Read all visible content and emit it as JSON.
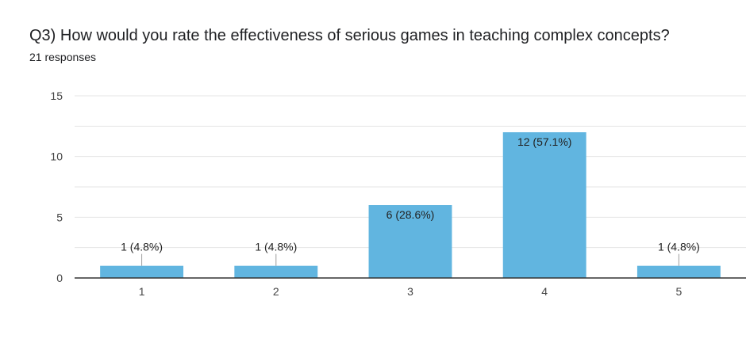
{
  "question": {
    "title": "Q3) How would you rate the effectiveness of serious games in teaching complex concepts?",
    "responses": "21 responses"
  },
  "colors": {
    "bar": "#61b5e0",
    "gridline": "#e6e6e6",
    "baseline": "#333333",
    "leader": "#9e9e9e"
  },
  "chart_data": {
    "type": "bar",
    "title": "Q3) How would you rate the effectiveness of serious games in teaching complex concepts?",
    "xlabel": "",
    "ylabel": "",
    "categories": [
      "1",
      "2",
      "3",
      "4",
      "5"
    ],
    "values": [
      1,
      1,
      6,
      12,
      1
    ],
    "data_labels": [
      "1 (4.8%)",
      "1 (4.8%)",
      "6 (28.6%)",
      "12 (57.1%)",
      "1 (4.8%)"
    ],
    "ylim": [
      0,
      15
    ],
    "yticks": [
      0,
      5,
      10,
      15
    ],
    "grid": true,
    "legend": "none"
  }
}
